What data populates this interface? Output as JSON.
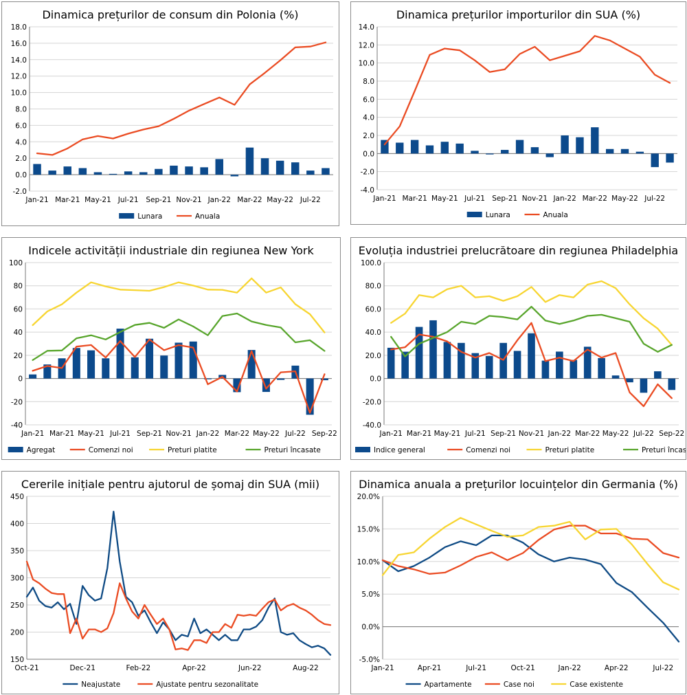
{
  "colors": {
    "bar": "#0c4a8c",
    "red": "#ea4b22",
    "yellow": "#f7d531",
    "green": "#58a52c",
    "navy": "#0e4a84",
    "grid": "#d4d4d4",
    "axis": "#777777"
  },
  "chart_data": [
    {
      "id": "p1",
      "type": "bar+line",
      "title": "Dinamica prețurilor de consum din Polonia (%)",
      "ylim": [
        -2,
        18
      ],
      "yticks": [
        -2,
        0,
        2,
        4,
        6,
        8,
        10,
        12,
        14,
        16,
        18
      ],
      "yfmt": "1",
      "n": 20,
      "xlabels": [
        "Jan-21",
        "Mar-21",
        "May-21",
        "Jul-21",
        "Sep-21",
        "Nov-21",
        "Jan-22",
        "Mar-22",
        "May-22",
        "Jul-22"
      ],
      "xlabel_step": 2,
      "legend": [
        "Lunara",
        "Anuala"
      ],
      "bars": {
        "name": "Lunara",
        "values": [
          1.3,
          0.5,
          1.0,
          0.8,
          0.3,
          0.1,
          0.4,
          0.3,
          0.7,
          1.1,
          1.0,
          0.9,
          1.9,
          -0.2,
          3.3,
          2.0,
          1.7,
          1.5,
          0.5,
          0.8
        ]
      },
      "series": [
        {
          "name": "Anuala",
          "values": [
            2.6,
            2.4,
            3.2,
            4.3,
            4.7,
            4.4,
            5.0,
            5.5,
            5.9,
            6.8,
            7.8,
            8.6,
            9.4,
            8.5,
            11.0,
            12.4,
            13.9,
            15.5,
            15.6,
            16.1
          ]
        }
      ]
    },
    {
      "id": "p2",
      "type": "bar+line",
      "title": "Dinamica prețurilor importurilor din SUA (%)",
      "ylim": [
        -4,
        14
      ],
      "yticks": [
        -4,
        -2,
        0,
        2,
        4,
        6,
        8,
        10,
        12,
        14
      ],
      "yfmt": "1",
      "n": 20,
      "xlabels": [
        "Jan-21",
        "Mar-21",
        "May-21",
        "Jul-21",
        "Sep-21",
        "Nov-21",
        "Jan-22",
        "Mar-22",
        "May-22",
        "Jul-22"
      ],
      "xlabel_step": 2,
      "legend": [
        "Lunara",
        "Anuala"
      ],
      "bars": {
        "name": "Lunara",
        "values": [
          1.5,
          1.2,
          1.5,
          0.9,
          1.3,
          1.1,
          0.3,
          -0.1,
          0.4,
          1.5,
          0.7,
          -0.4,
          2.0,
          1.8,
          2.9,
          0.5,
          0.5,
          0.2,
          -1.5,
          -1.0
        ]
      },
      "series": [
        {
          "name": "Anuala",
          "values": [
            1.0,
            3.0,
            6.9,
            10.9,
            11.6,
            11.4,
            10.3,
            9.0,
            9.3,
            11.0,
            11.8,
            10.3,
            10.8,
            11.3,
            13.0,
            12.5,
            11.6,
            10.7,
            8.7,
            7.8
          ]
        }
      ]
    },
    {
      "id": "p3",
      "type": "bar+line",
      "title": "Indicele activității industriale din regiunea New York",
      "ylim": [
        -40,
        100
      ],
      "yticks": [
        -40,
        -20,
        0,
        20,
        40,
        60,
        80,
        100
      ],
      "yfmt": "0",
      "n": 21,
      "xlabels": [
        "Jan-21",
        "Mar-21",
        "May-21",
        "Jul-21",
        "Sep-21",
        "Nov-21",
        "Jan-22",
        "Mar-22",
        "May-22",
        "Jul-22",
        "Sep-22"
      ],
      "xlabel_step": 2,
      "legend": [
        "Agregat",
        "Comenzi noi",
        "Preturi platite",
        "Preturi încasate"
      ],
      "bars": {
        "name": "Agregat",
        "values": [
          3.5,
          12.1,
          17.4,
          26.3,
          24.3,
          17.4,
          43.0,
          18.3,
          34.3,
          19.8,
          30.9,
          31.9,
          -0.7,
          3.1,
          -11.8,
          24.6,
          -11.6,
          -1.2,
          11.1,
          -31.3,
          -1.5
        ]
      },
      "series": [
        {
          "name": "Comenzi noi",
          "color": "red",
          "values": [
            6.6,
            10.8,
            9.0,
            27.5,
            28.9,
            18.1,
            32.3,
            18.5,
            33.7,
            24.4,
            28.8,
            26.7,
            -5.0,
            1.4,
            -11.2,
            23.6,
            -8.8,
            5.3,
            6.2,
            -29.6,
            3.7
          ]
        },
        {
          "name": "Preturi platite",
          "color": "yellow",
          "values": [
            46.0,
            57.9,
            64.0,
            74.1,
            83.0,
            79.5,
            76.7,
            76.2,
            75.7,
            78.9,
            83.0,
            80.2,
            76.7,
            76.5,
            74.1,
            86.4,
            74.1,
            78.6,
            64.1,
            55.5,
            39.7
          ]
        },
        {
          "name": "Preturi încasate",
          "color": "green",
          "values": [
            15.9,
            23.9,
            24.2,
            34.7,
            37.3,
            33.7,
            40.1,
            46.2,
            48.0,
            43.7,
            51.0,
            44.9,
            37.3,
            53.9,
            56.1,
            49.2,
            46.2,
            44.0,
            31.2,
            33.0,
            23.8
          ]
        }
      ]
    },
    {
      "id": "p4",
      "type": "bar+line",
      "title": "Evoluția industriei prelucrătoare din regiunea Philadelphia",
      "ylim": [
        -40,
        100
      ],
      "yticks": [
        -40,
        -20,
        0,
        20,
        40,
        60,
        80,
        100
      ],
      "yfmt": "1",
      "n": 21,
      "xlabels": [
        "Jan-21",
        "Mar-21",
        "May-21",
        "Jul-21",
        "Sep-21",
        "Nov-21",
        "Jan-22",
        "Mar-22",
        "May-22",
        "Jul-22",
        "Sep-22"
      ],
      "xlabel_step": 2,
      "legend": [
        "Indice general",
        "Comenzi noi",
        "Preturi platite",
        "Preturi încasate"
      ],
      "bars": {
        "name": "Indice general",
        "values": [
          26.5,
          23.1,
          44.5,
          50.2,
          31.5,
          30.7,
          21.9,
          19.4,
          30.7,
          23.8,
          39.0,
          15.4,
          23.2,
          16.0,
          27.4,
          17.6,
          2.6,
          -3.3,
          -12.3,
          6.2,
          -9.9
        ]
      },
      "series": [
        {
          "name": "Comenzi noi",
          "color": "red",
          "values": [
            25.0,
            27.0,
            38.0,
            36.0,
            32.0,
            23.0,
            18.0,
            22.0,
            16.0,
            33.0,
            48.0,
            15.0,
            18.0,
            15.0,
            25.0,
            18.0,
            22.0,
            -12.0,
            -24.0,
            -5.0,
            -17.0
          ]
        },
        {
          "name": "Preturi platite",
          "color": "yellow",
          "values": [
            48.0,
            56.0,
            72.0,
            70.0,
            77.0,
            80.0,
            70.0,
            71.0,
            67.0,
            71.0,
            79.0,
            66.0,
            72.0,
            70.0,
            81.0,
            84.0,
            78.0,
            64.0,
            52.0,
            43.0,
            29.0
          ]
        },
        {
          "name": "Preturi încasate",
          "color": "green",
          "values": [
            36.0,
            19.0,
            30.0,
            35.0,
            40.0,
            49.0,
            47.0,
            54.0,
            53.0,
            51.0,
            62.0,
            50.0,
            47.0,
            50.0,
            54.0,
            55.0,
            52.0,
            49.0,
            30.0,
            23.0,
            29.0
          ]
        }
      ]
    },
    {
      "id": "p5",
      "type": "line",
      "title": "Cererile inițiale pentru ajutorul de șomaj din SUA (mii)",
      "ylim": [
        150,
        450
      ],
      "yticks": [
        150,
        200,
        250,
        300,
        350,
        400,
        450
      ],
      "yfmt": "0",
      "n": 50,
      "xlabels": [
        "Oct-21",
        "Dec-21",
        "Feb-22",
        "Apr-22",
        "Jun-22",
        "Aug-22"
      ],
      "xlabel_step": 9,
      "legend": [
        "Neajustate",
        "Ajustate pentru sezonalitate"
      ],
      "series": [
        {
          "name": "Neajustate",
          "color": "navy",
          "values": [
            265,
            282,
            258,
            248,
            245,
            255,
            242,
            252,
            215,
            285,
            268,
            258,
            262,
            318,
            422,
            330,
            265,
            255,
            230,
            240,
            218,
            198,
            218,
            205,
            185,
            195,
            192,
            225,
            198,
            205,
            195,
            185,
            195,
            185,
            185,
            205,
            205,
            210,
            222,
            245,
            262,
            200,
            195,
            198,
            185,
            178,
            172,
            175,
            170,
            158
          ]
        },
        {
          "name": "Ajustate pentru sezonalitate",
          "color": "red",
          "values": [
            330,
            297,
            290,
            280,
            272,
            270,
            270,
            198,
            225,
            188,
            205,
            205,
            200,
            207,
            235,
            290,
            262,
            238,
            225,
            250,
            232,
            215,
            225,
            205,
            168,
            170,
            167,
            185,
            185,
            180,
            200,
            200,
            215,
            208,
            232,
            230,
            232,
            230,
            243,
            255,
            260,
            240,
            248,
            252,
            245,
            240,
            232,
            222,
            215,
            213
          ]
        }
      ]
    },
    {
      "id": "p6",
      "type": "line",
      "title": "Dinamica anuala a prețurilor locuințelor din Germania (%)",
      "ylim": [
        -5,
        20
      ],
      "yticks": [
        -5,
        0,
        5,
        10,
        15,
        20
      ],
      "yfmt": "pct",
      "n": 20,
      "xlabels": [
        "Jan-21",
        "Apr-21",
        "Jul-21",
        "Oct-21",
        "Jan-22",
        "Apr-22",
        "Jul-22"
      ],
      "xlabel_step": 3,
      "legend": [
        "Apartamente",
        "Case noi",
        "Case existente"
      ],
      "series": [
        {
          "name": "Apartamente",
          "color": "navy",
          "values": [
            10.2,
            8.5,
            9.3,
            10.6,
            12.2,
            13.1,
            12.5,
            14.0,
            14.0,
            12.9,
            11.1,
            10.0,
            10.6,
            10.3,
            9.6,
            6.7,
            5.3,
            2.9,
            0.6,
            -2.3
          ]
        },
        {
          "name": "Case noi",
          "color": "red",
          "values": [
            10.2,
            9.3,
            8.8,
            8.1,
            8.3,
            9.4,
            10.7,
            11.4,
            10.2,
            11.3,
            13.3,
            14.9,
            15.5,
            15.5,
            14.3,
            14.3,
            13.5,
            13.4,
            11.3,
            10.6
          ]
        },
        {
          "name": "Case existente",
          "color": "yellow",
          "values": [
            7.9,
            11.0,
            11.4,
            13.5,
            15.3,
            16.7,
            15.7,
            14.7,
            13.8,
            14.0,
            15.3,
            15.5,
            16.1,
            13.4,
            14.9,
            15.0,
            12.6,
            9.6,
            6.8,
            5.7
          ]
        }
      ]
    }
  ]
}
